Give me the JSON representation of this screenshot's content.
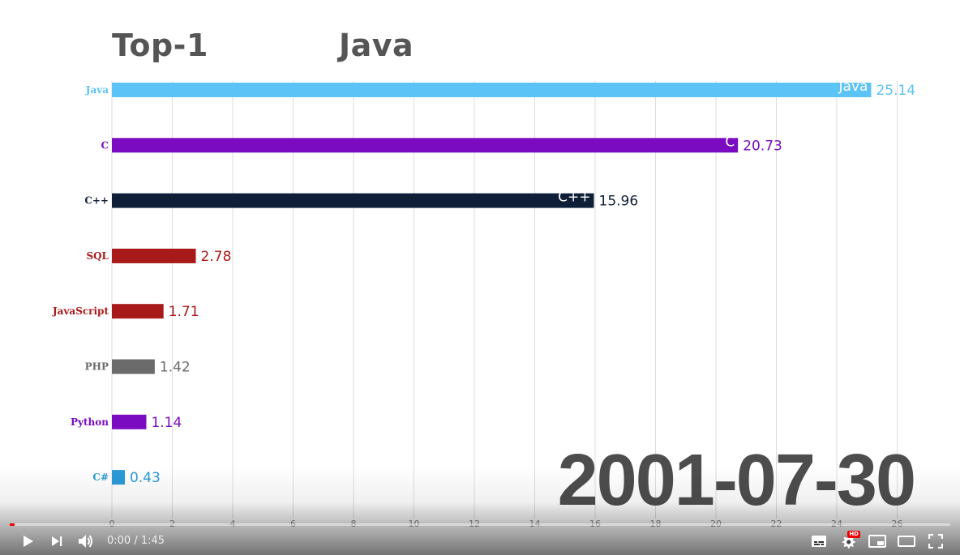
{
  "header": {
    "title_left": "Top-1",
    "title_right": "Java"
  },
  "date_stamp": "2001-07-30",
  "chart_data": {
    "type": "bar",
    "orientation": "horizontal",
    "title": "Top-1",
    "xlim": [
      0,
      26
    ],
    "xticks": [
      0,
      2,
      4,
      6,
      8,
      10,
      12,
      14,
      16,
      18,
      20,
      22,
      24,
      26
    ],
    "grid": true,
    "bars": [
      {
        "label": "Java",
        "value": 25.14,
        "value_text": "25.14",
        "color": "#5bc3f5",
        "inner_label": "Java"
      },
      {
        "label": "C",
        "value": 20.73,
        "value_text": "20.73",
        "color": "#7a0bc0",
        "inner_label": "C"
      },
      {
        "label": "C++",
        "value": 15.96,
        "value_text": "15.96",
        "color": "#0f1f38",
        "inner_label": "C++"
      },
      {
        "label": "SQL",
        "value": 2.78,
        "value_text": "2.78",
        "color": "#a81a1a",
        "inner_label": ""
      },
      {
        "label": "JavaScript",
        "value": 1.71,
        "value_text": "1.71",
        "color": "#a81a1a",
        "inner_label": ""
      },
      {
        "label": "PHP",
        "value": 1.42,
        "value_text": "1.42",
        "color": "#6b6b6b",
        "inner_label": ""
      },
      {
        "label": "Python",
        "value": 1.14,
        "value_text": "1.14",
        "color": "#7a0bc0",
        "inner_label": ""
      },
      {
        "label": "C#",
        "value": 0.43,
        "value_text": "0.43",
        "color": "#2a9ad6",
        "inner_label": ""
      }
    ]
  },
  "player": {
    "time_display": "0:00 / 1:45",
    "progress": 0.005,
    "hd_label": "HD",
    "icons": {
      "play": "play-icon",
      "next": "next-icon",
      "volume": "volume-icon",
      "subtitles": "subtitles-icon",
      "settings": "settings-icon",
      "miniplayer": "miniplayer-icon",
      "theater": "theater-icon",
      "fullscreen": "fullscreen-icon"
    },
    "accent_color": "#ff0000"
  }
}
